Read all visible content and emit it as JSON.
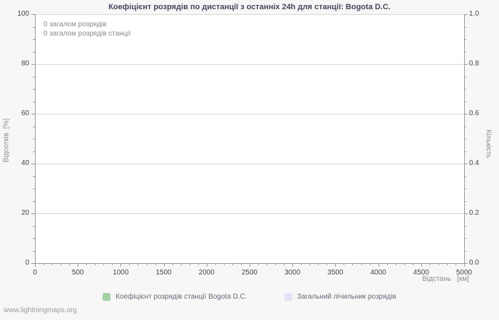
{
  "title": "Коефіцієнт розрядів по дистанції з останніх 24h для станції: Bogota D.C.",
  "annotations": [
    "0 загалом розрядів",
    "0 загалом розрядів станції"
  ],
  "axes": {
    "left_label": "Відсотків  [%]",
    "right_label": "Кількість",
    "x_label": "Відстань   [км]"
  },
  "watermark": "www.lightningmaps.org",
  "chart_data": {
    "type": "line",
    "title": "Коефіцієнт розрядів по дистанції з останніх 24h для станції: Bogota D.C.",
    "xlabel": "Відстань [км]",
    "ylabel_left": "Відсотків [%]",
    "ylabel_right": "Кількість",
    "xlim": [
      0,
      5000
    ],
    "ylim_left": [
      0,
      100
    ],
    "ylim_right": [
      0,
      1
    ],
    "x_ticks": [
      0,
      500,
      1000,
      1500,
      2000,
      2500,
      3000,
      3500,
      4000,
      4500,
      5000
    ],
    "x_minor_step": 100,
    "y_left_ticks": [
      0,
      20,
      40,
      60,
      80,
      100
    ],
    "y_left_minor_step": 5,
    "y_right_tick_labels": [
      "0.0",
      "0.2",
      "0.4",
      "0.6",
      "0.8",
      "1.0"
    ],
    "grid": true,
    "legend_position": "bottom",
    "total_strokes": 0,
    "total_station_strokes": 0,
    "series": [
      {
        "name": "Коефіцієнт розрядів станції Bogota D.C.",
        "color": "#a5cfa5",
        "x": [],
        "values": []
      },
      {
        "name": "Загальний лічильник розрядів",
        "color": "#e2e2f2",
        "x": [],
        "values": []
      }
    ]
  }
}
